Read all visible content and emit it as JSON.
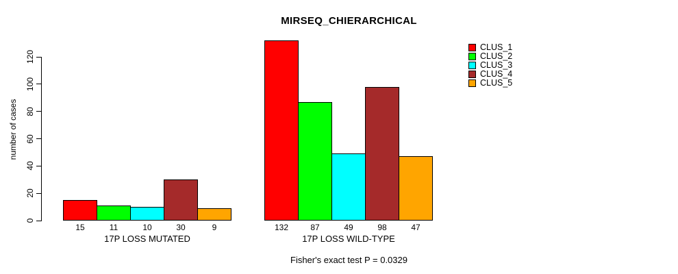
{
  "title": "MIRSEQ_CHIERARCHICAL",
  "caption": "Fisher's exact test P = 0.0329",
  "chart_data": {
    "type": "bar",
    "title": "MIRSEQ_CHIERARCHICAL",
    "xlabel": "",
    "ylabel": "number of cases",
    "yticks": [
      0,
      20,
      40,
      60,
      80,
      100,
      120
    ],
    "ylim": [
      0,
      132
    ],
    "grid": false,
    "legend_position": "top-right",
    "bar_borders": "#000000",
    "categories": [
      "17P LOSS MUTATED",
      "17P LOSS WILD-TYPE"
    ],
    "series": [
      {
        "name": "CLUS_1",
        "color": "#ff0000",
        "values": [
          15,
          132
        ]
      },
      {
        "name": "CLUS_2",
        "color": "#00ff00",
        "values": [
          11,
          87
        ]
      },
      {
        "name": "CLUS_3",
        "color": "#00ffff",
        "values": [
          10,
          49
        ]
      },
      {
        "name": "CLUS_4",
        "color": "#a52a2a",
        "values": [
          30,
          98
        ]
      },
      {
        "name": "CLUS_5",
        "color": "#ffa500",
        "values": [
          9,
          47
        ]
      }
    ],
    "bar_value_labels": true,
    "annotation": "Fisher's exact test P = 0.0329"
  }
}
